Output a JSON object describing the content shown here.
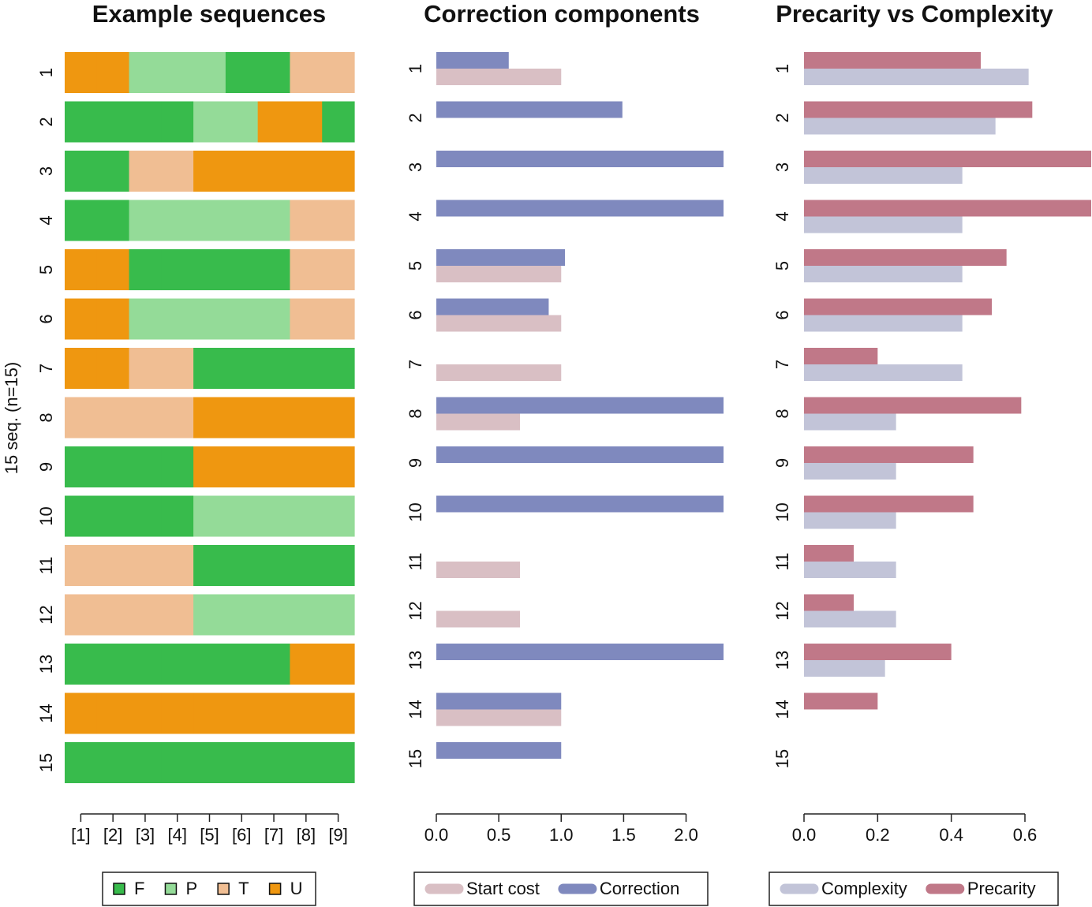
{
  "chart_data": [
    {
      "type": "sequence",
      "title": "Example sequences",
      "ylabel": "15 seq. (n=15)",
      "categories": [
        "1",
        "2",
        "3",
        "4",
        "5",
        "6",
        "7",
        "8",
        "9",
        "10",
        "11",
        "12",
        "13",
        "14",
        "15"
      ],
      "states": [
        {
          "name": "F",
          "color": "#38bb4c"
        },
        {
          "name": "P",
          "color": "#94db98"
        },
        {
          "name": "T",
          "color": "#f0be93"
        },
        {
          "name": "U",
          "color": "#ef9710"
        }
      ],
      "sequences": [
        [
          "U",
          "U",
          "P",
          "P",
          "P",
          "F",
          "F",
          "T",
          "T"
        ],
        [
          "F",
          "F",
          "F",
          "F",
          "P",
          "P",
          "U",
          "U",
          "F"
        ],
        [
          "F",
          "F",
          "T",
          "T",
          "U",
          "U",
          "U",
          "U",
          "U"
        ],
        [
          "F",
          "F",
          "P",
          "P",
          "P",
          "P",
          "P",
          "T",
          "T"
        ],
        [
          "U",
          "U",
          "F",
          "F",
          "F",
          "F",
          "F",
          "T",
          "T"
        ],
        [
          "U",
          "U",
          "P",
          "P",
          "P",
          "P",
          "P",
          "T",
          "T"
        ],
        [
          "U",
          "U",
          "T",
          "T",
          "F",
          "F",
          "F",
          "F",
          "F"
        ],
        [
          "T",
          "T",
          "T",
          "T",
          "U",
          "U",
          "U",
          "U",
          "U"
        ],
        [
          "F",
          "F",
          "F",
          "F",
          "U",
          "U",
          "U",
          "U",
          "U"
        ],
        [
          "F",
          "F",
          "F",
          "F",
          "P",
          "P",
          "P",
          "P",
          "P"
        ],
        [
          "T",
          "T",
          "T",
          "T",
          "F",
          "F",
          "F",
          "F",
          "F"
        ],
        [
          "T",
          "T",
          "T",
          "T",
          "P",
          "P",
          "P",
          "P",
          "P"
        ],
        [
          "F",
          "F",
          "F",
          "F",
          "F",
          "F",
          "F",
          "U",
          "U"
        ],
        [
          "U",
          "U",
          "U",
          "U",
          "U",
          "U",
          "U",
          "U",
          "U"
        ],
        [
          "F",
          "F",
          "F",
          "F",
          "F",
          "F",
          "F",
          "F",
          "F"
        ]
      ],
      "xlim": [
        0.5,
        9.5
      ],
      "xticks": [
        {
          "value": 1,
          "label": "[1]"
        },
        {
          "value": 2,
          "label": "[2]"
        },
        {
          "value": 3,
          "label": "[3]"
        },
        {
          "value": 4,
          "label": "[4]"
        },
        {
          "value": 5,
          "label": "[5]"
        },
        {
          "value": 6,
          "label": "[6]"
        },
        {
          "value": 7,
          "label": "[7]"
        },
        {
          "value": 8,
          "label": "[8]"
        },
        {
          "value": 9,
          "label": "[9]"
        }
      ]
    },
    {
      "type": "hbar",
      "title": "Correction components",
      "categories": [
        "1",
        "2",
        "3",
        "4",
        "5",
        "6",
        "7",
        "8",
        "9",
        "10",
        "11",
        "12",
        "13",
        "14",
        "15"
      ],
      "series": [
        {
          "name": "Start cost",
          "color": "#d9bfc4",
          "values": [
            1.0,
            0,
            0,
            0,
            1.0,
            1.0,
            1.0,
            0.67,
            0,
            0,
            0.67,
            0.67,
            0,
            1.0,
            0
          ]
        },
        {
          "name": "Correction",
          "color": "#7f89be",
          "values": [
            0.58,
            1.49,
            2.3,
            2.3,
            1.03,
            0.9,
            0,
            2.3,
            2.3,
            2.3,
            0,
            0,
            2.3,
            1.0,
            1.0
          ]
        }
      ],
      "xlim": [
        0,
        2.3
      ],
      "xticks": [
        {
          "value": 0,
          "label": "0.0"
        },
        {
          "value": 0.5,
          "label": "0.5"
        },
        {
          "value": 1,
          "label": "1.0"
        },
        {
          "value": 1.5,
          "label": "1.5"
        },
        {
          "value": 2,
          "label": "2.0"
        }
      ]
    },
    {
      "type": "hbar",
      "title": "Precarity vs Complexity",
      "categories": [
        "1",
        "2",
        "3",
        "4",
        "5",
        "6",
        "7",
        "8",
        "9",
        "10",
        "11",
        "12",
        "13",
        "14",
        "15"
      ],
      "series": [
        {
          "name": "Complexity",
          "color": "#c2c4d8",
          "values": [
            0.61,
            0.52,
            0.43,
            0.43,
            0.43,
            0.43,
            0.43,
            0.25,
            0.25,
            0.25,
            0.25,
            0.25,
            0.22,
            0,
            0
          ]
        },
        {
          "name": "Precarity",
          "color": "#c07888",
          "values": [
            0.48,
            0.62,
            0.78,
            0.78,
            0.55,
            0.51,
            0.2,
            0.59,
            0.46,
            0.46,
            0.135,
            0.135,
            0.4,
            0.2,
            0
          ]
        }
      ],
      "xlim": [
        0,
        0.78
      ],
      "xticks": [
        {
          "value": 0,
          "label": "0.0"
        },
        {
          "value": 0.2,
          "label": "0.2"
        },
        {
          "value": 0.4,
          "label": "0.4"
        },
        {
          "value": 0.6,
          "label": "0.6"
        }
      ]
    }
  ]
}
